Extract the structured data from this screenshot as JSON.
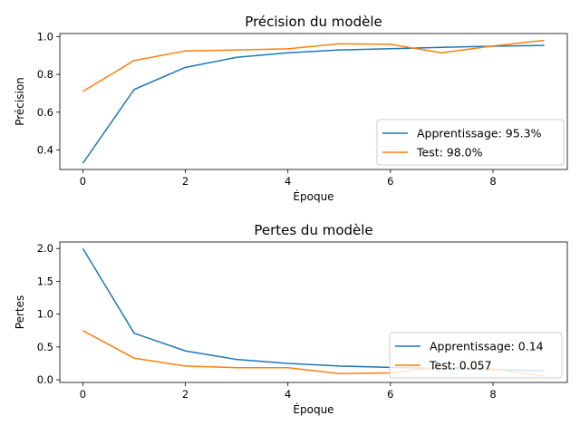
{
  "colors": {
    "train": "#1f77b4",
    "test": "#ff7f0e"
  },
  "chart_data": [
    {
      "type": "line",
      "title": "Précision du modèle",
      "xlabel": "Époque",
      "ylabel": "Précision",
      "xlim": [
        -0.45,
        9.45
      ],
      "ylim": [
        0.297,
        1.016
      ],
      "xticks": [
        0,
        2,
        4,
        6,
        8
      ],
      "yticks": [
        0.4,
        0.6,
        0.8,
        1.0
      ],
      "ytick_labels": [
        "0.4",
        "0.6",
        "0.8",
        "1.0"
      ],
      "legend_position": "lower-right",
      "x": [
        0,
        1,
        2,
        3,
        4,
        5,
        6,
        7,
        8,
        9
      ],
      "series": [
        {
          "name": "Apprentissage: 95.3%",
          "color": "#1f77b4",
          "values": [
            0.33,
            0.72,
            0.837,
            0.89,
            0.914,
            0.929,
            0.936,
            0.943,
            0.949,
            0.953
          ]
        },
        {
          "name": "Test: 98.0%",
          "color": "#ff7f0e",
          "values": [
            0.71,
            0.873,
            0.924,
            0.929,
            0.935,
            0.962,
            0.959,
            0.914,
            0.95,
            0.98
          ]
        }
      ]
    },
    {
      "type": "line",
      "title": "Pertes du modèle",
      "xlabel": "Époque",
      "ylabel": "Pertes",
      "xlim": [
        -0.45,
        9.45
      ],
      "ylim": [
        -0.04,
        2.1
      ],
      "xticks": [
        0,
        2,
        4,
        6,
        8
      ],
      "yticks": [
        0.0,
        0.5,
        1.0,
        1.5,
        2.0
      ],
      "ytick_labels": [
        "0.0",
        "0.5",
        "1.0",
        "1.5",
        "2.0"
      ],
      "legend_position": "lower-right",
      "x": [
        0,
        1,
        2,
        3,
        4,
        5,
        6,
        7,
        8,
        9
      ],
      "series": [
        {
          "name": "Apprentissage: 0.14",
          "color": "#1f77b4",
          "values": [
            2.0,
            0.71,
            0.44,
            0.31,
            0.25,
            0.21,
            0.19,
            0.17,
            0.155,
            0.14
          ]
        },
        {
          "name": "Test: 0.057",
          "color": "#ff7f0e",
          "values": [
            0.75,
            0.33,
            0.21,
            0.185,
            0.185,
            0.095,
            0.105,
            0.2,
            0.165,
            0.057
          ]
        }
      ]
    }
  ]
}
